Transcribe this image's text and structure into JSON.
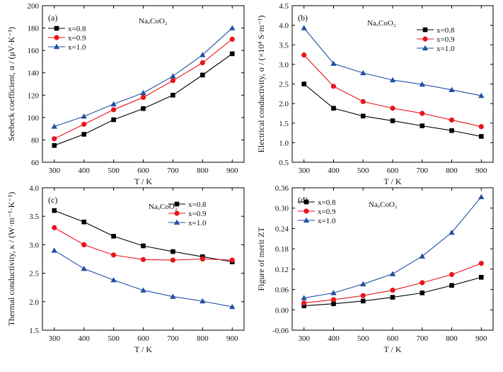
{
  "chart_data": [
    {
      "type": "line",
      "panel_label": "(a)",
      "compound": "NaₓCoO₂",
      "xlabel": "T / K",
      "ylabel": "Seebeck coefficient, α / (μV·K⁻¹)",
      "x": [
        300,
        400,
        500,
        600,
        700,
        800,
        900
      ],
      "xticks": [
        300,
        400,
        500,
        600,
        700,
        800,
        900
      ],
      "xlim": [
        260,
        940
      ],
      "ylim": [
        60,
        200
      ],
      "yticks": [
        60,
        80,
        100,
        120,
        140,
        160,
        180,
        200
      ],
      "legend_position": "top-left",
      "series": [
        {
          "name": "x=0.8",
          "color": "#000000",
          "marker": "square",
          "values": [
            75,
            85,
            98,
            108,
            120,
            138,
            157
          ]
        },
        {
          "name": "x=0.9",
          "color": "#e8141b",
          "marker": "circle",
          "values": [
            81,
            94,
            107,
            118,
            133,
            149,
            170
          ]
        },
        {
          "name": "x=1.0",
          "color": "#1f4fa3",
          "marker": "triangle",
          "values": [
            92,
            101,
            112,
            122,
            137,
            156,
            180
          ]
        }
      ]
    },
    {
      "type": "line",
      "panel_label": "(b)",
      "compound": "NaₓCoO₂",
      "xlabel": "T / K",
      "ylabel": "Electrical conductivity, σ / (×10⁴ S·m⁻¹)",
      "x": [
        300,
        400,
        500,
        600,
        700,
        800,
        900
      ],
      "xticks": [
        300,
        400,
        500,
        600,
        700,
        800,
        900
      ],
      "xlim": [
        260,
        940
      ],
      "ylim": [
        0.5,
        4.5
      ],
      "yticks": [
        0.5,
        1.0,
        1.5,
        2.0,
        2.5,
        3.0,
        3.5,
        4.0,
        4.5
      ],
      "legend_position": "top-right",
      "series": [
        {
          "name": "x=0.8",
          "color": "#000000",
          "marker": "square",
          "values": [
            2.5,
            1.88,
            1.68,
            1.56,
            1.43,
            1.31,
            1.16
          ]
        },
        {
          "name": "x=0.9",
          "color": "#e8141b",
          "marker": "circle",
          "values": [
            3.24,
            2.44,
            2.05,
            1.88,
            1.75,
            1.58,
            1.41
          ]
        },
        {
          "name": "x=1.0",
          "color": "#1f4fa3",
          "marker": "triangle",
          "values": [
            3.93,
            3.02,
            2.78,
            2.6,
            2.49,
            2.35,
            2.2
          ]
        }
      ]
    },
    {
      "type": "line",
      "panel_label": "(c)",
      "compound": "NaₓCoO₂",
      "xlabel": "T / K",
      "ylabel": "Thermal conductivity, κ / (W·m⁻¹·K⁻¹)",
      "x": [
        300,
        400,
        500,
        600,
        700,
        800,
        900
      ],
      "xticks": [
        300,
        400,
        500,
        600,
        700,
        800,
        900
      ],
      "xlim": [
        260,
        940
      ],
      "ylim": [
        1.5,
        4.0
      ],
      "yticks": [
        1.5,
        2.0,
        2.5,
        3.0,
        3.5,
        4.0
      ],
      "legend_position": "top-right",
      "series": [
        {
          "name": "x=0.8",
          "color": "#000000",
          "marker": "square",
          "values": [
            3.6,
            3.4,
            3.15,
            2.98,
            2.88,
            2.79,
            2.7
          ]
        },
        {
          "name": "x=0.9",
          "color": "#e8141b",
          "marker": "circle",
          "values": [
            3.3,
            3.0,
            2.82,
            2.74,
            2.73,
            2.75,
            2.73
          ]
        },
        {
          "name": "x=1.0",
          "color": "#1f4fa3",
          "marker": "triangle",
          "values": [
            2.9,
            2.58,
            2.38,
            2.2,
            2.09,
            2.01,
            1.91
          ]
        }
      ]
    },
    {
      "type": "line",
      "panel_label": "(d)",
      "compound": "NaₓCoO₂",
      "xlabel": "T / K",
      "ylabel": "Figure of merit ZT",
      "x": [
        300,
        400,
        500,
        600,
        700,
        800,
        900
      ],
      "xticks": [
        300,
        400,
        500,
        600,
        700,
        800,
        900
      ],
      "xlim": [
        260,
        940
      ],
      "ylim": [
        -0.06,
        0.36
      ],
      "yticks": [
        -0.06,
        0.0,
        0.06,
        0.12,
        0.18,
        0.24,
        0.3,
        0.36
      ],
      "ytick_labels": [
        "-0.06",
        "0.00",
        "0.06",
        "0.12",
        "0.18",
        "0.24",
        "0.30",
        "0.36"
      ],
      "legend_position": "top-left",
      "series": [
        {
          "name": "x=0.8",
          "color": "#000000",
          "marker": "square",
          "values": [
            0.012,
            0.018,
            0.026,
            0.037,
            0.05,
            0.072,
            0.096
          ]
        },
        {
          "name": "x=0.9",
          "color": "#e8141b",
          "marker": "circle",
          "values": [
            0.02,
            0.03,
            0.042,
            0.058,
            0.08,
            0.104,
            0.137
          ]
        },
        {
          "name": "x=1.0",
          "color": "#1f4fa3",
          "marker": "triangle",
          "values": [
            0.035,
            0.05,
            0.076,
            0.106,
            0.158,
            0.228,
            0.333
          ]
        }
      ]
    }
  ]
}
